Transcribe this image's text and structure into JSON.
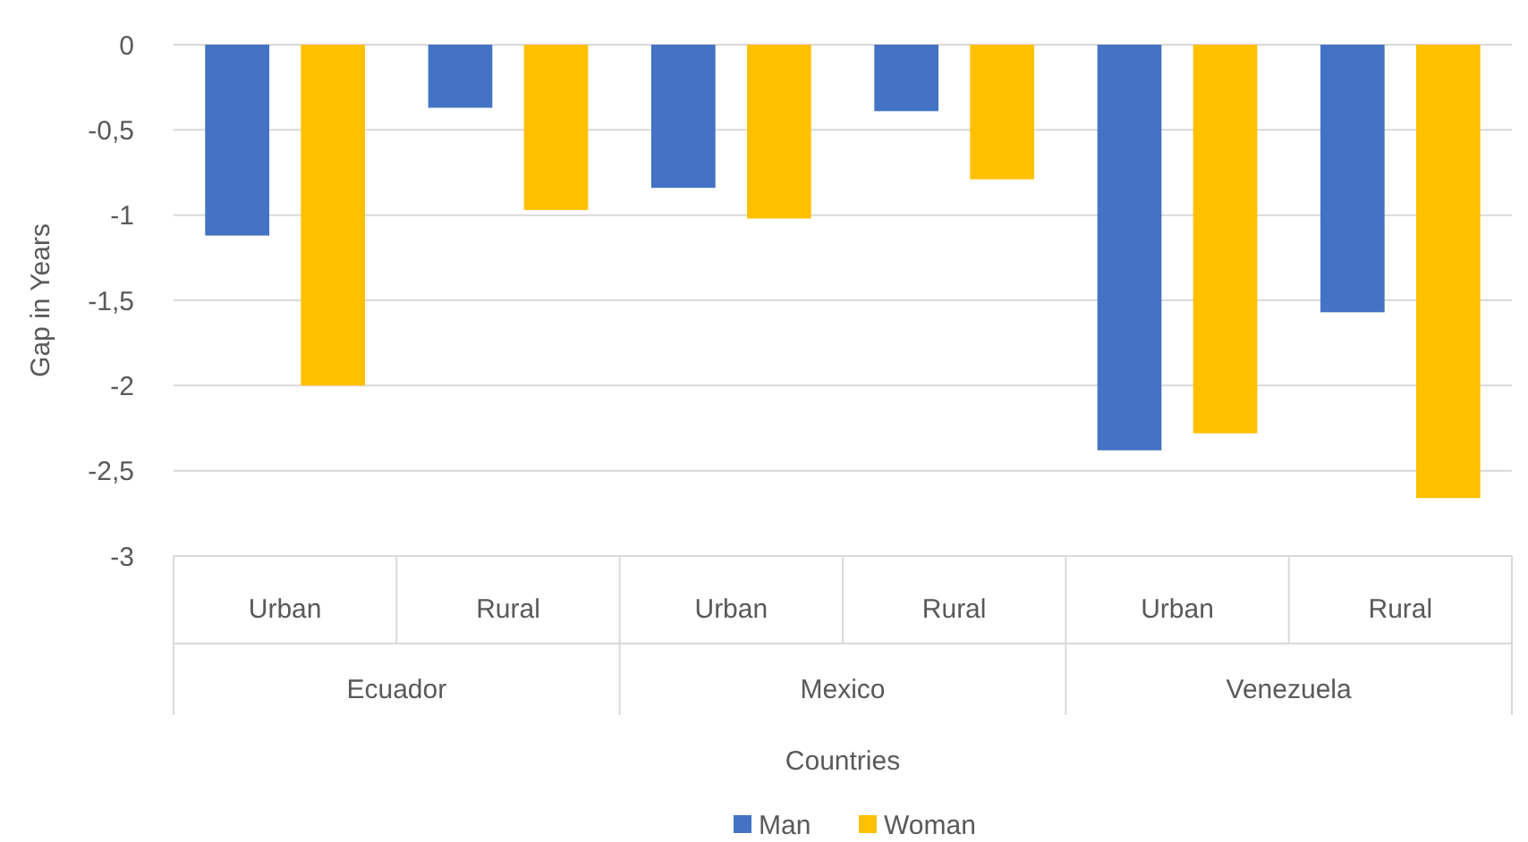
{
  "chart_data": {
    "type": "bar",
    "xlabel": "Countries",
    "ylabel": "Gap in Years",
    "categories": [
      "Urban",
      "Rural",
      "Urban",
      "Rural",
      "Urban",
      "Rural"
    ],
    "annotations": [
      "Ecuador",
      "Mexico",
      "Venezuela"
    ],
    "series": [
      {
        "name": "Man",
        "color": "#4472c4",
        "values": [
          -1.12,
          -0.37,
          -0.84,
          -0.39,
          -2.38,
          -1.57
        ]
      },
      {
        "name": "Woman",
        "color": "#ffc000",
        "values": [
          -2.0,
          -0.97,
          -1.02,
          -0.79,
          -2.28,
          -2.66
        ]
      }
    ],
    "ylim": [
      -3,
      0
    ],
    "yticks": [
      0,
      {
        "value": -0.5,
        "label": "-0,5"
      },
      -1,
      {
        "value": -1.5,
        "label": "-1,5"
      },
      -2,
      {
        "value": -2.5,
        "label": "-2,5"
      },
      -3
    ],
    "grid": "y",
    "legend": "bottom"
  }
}
